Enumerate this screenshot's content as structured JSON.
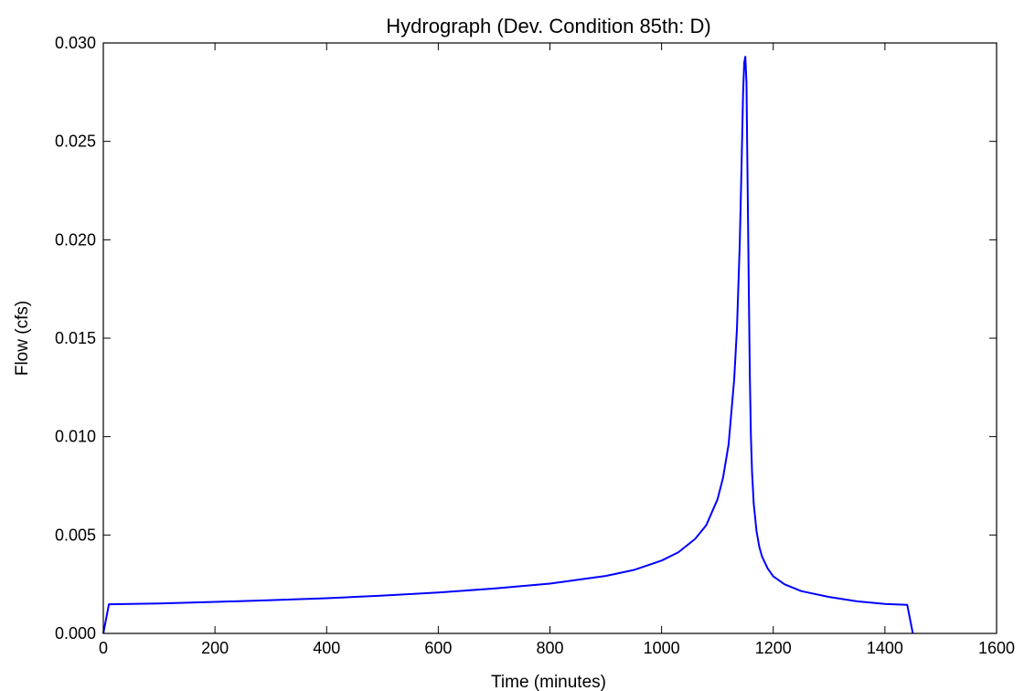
{
  "chart_data": {
    "type": "line",
    "title": "Hydrograph (Dev. Condition 85th: D)",
    "xlabel": "Time (minutes)",
    "ylabel": "Flow (cfs)",
    "xlim": [
      0,
      1600
    ],
    "ylim": [
      0,
      0.03
    ],
    "xticks": [
      0,
      200,
      400,
      600,
      800,
      1000,
      1200,
      1400,
      1600
    ],
    "xtick_labels": [
      "0",
      "200",
      "400",
      "600",
      "800",
      "1000",
      "1200",
      "1400",
      "1600"
    ],
    "yticks": [
      0.0,
      0.005,
      0.01,
      0.015,
      0.02,
      0.025,
      0.03
    ],
    "ytick_labels": [
      "0.000",
      "0.005",
      "0.010",
      "0.015",
      "0.020",
      "0.025",
      "0.030"
    ],
    "grid": false,
    "line_color": "#0000ff",
    "series": [
      {
        "x": [
          0,
          10,
          100,
          200,
          300,
          400,
          500,
          600,
          700,
          800,
          900,
          950,
          1000,
          1030,
          1060,
          1080,
          1100,
          1110,
          1120,
          1130,
          1135,
          1140,
          1143,
          1146,
          1148,
          1150,
          1152,
          1154,
          1156,
          1158,
          1160,
          1162,
          1165,
          1170,
          1175,
          1180,
          1190,
          1200,
          1220,
          1250,
          1300,
          1350,
          1400,
          1440,
          1450
        ],
        "y": [
          0.0,
          0.00148,
          0.00152,
          0.0016,
          0.00169,
          0.00179,
          0.00192,
          0.00208,
          0.00228,
          0.00253,
          0.00292,
          0.00322,
          0.0037,
          0.00412,
          0.0048,
          0.0055,
          0.0068,
          0.0079,
          0.0096,
          0.0129,
          0.0155,
          0.0198,
          0.0235,
          0.0275,
          0.029,
          0.0293,
          0.028,
          0.023,
          0.018,
          0.0132,
          0.01,
          0.0082,
          0.0066,
          0.0052,
          0.0044,
          0.0039,
          0.0033,
          0.0029,
          0.0025,
          0.00215,
          0.00185,
          0.00163,
          0.0015,
          0.00145,
          0.0
        ]
      }
    ]
  }
}
